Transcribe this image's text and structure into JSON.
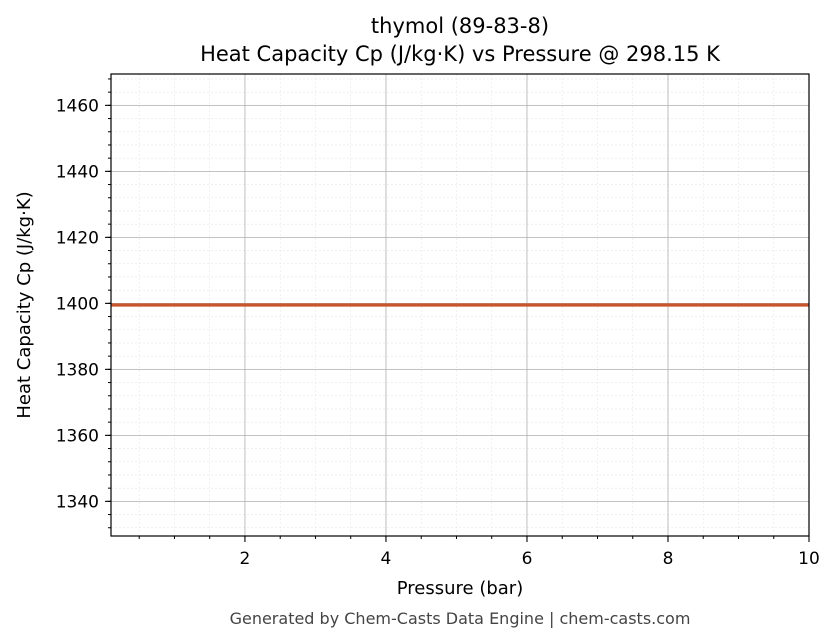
{
  "chart_data": {
    "type": "line",
    "title": "thymol (89-83-8)",
    "subtitle": "Heat Capacity Cp (J/kg·K) vs Pressure @ 298.15 K",
    "xlabel": "Pressure (bar)",
    "ylabel": "Heat Capacity Cp (J/kg·K)",
    "xlim": [
      0.1,
      10
    ],
    "ylim": [
      1329.5,
      1469.5
    ],
    "x_ticks": [
      2,
      4,
      6,
      8,
      10
    ],
    "y_ticks": [
      1340,
      1360,
      1380,
      1400,
      1420,
      1440,
      1460
    ],
    "x_tick_labels": [
      "2",
      "4",
      "6",
      "8",
      "10"
    ],
    "y_tick_labels": [
      "1340",
      "1360",
      "1380",
      "1400",
      "1420",
      "1440",
      "1460"
    ],
    "grid": true,
    "minor_grid": true,
    "series": [
      {
        "color": "#c8552b",
        "x": [
          0.1,
          10
        ],
        "y": [
          1399.5,
          1399.5
        ]
      }
    ]
  },
  "footer": "Generated by Chem-Casts Data Engine | chem-casts.com"
}
